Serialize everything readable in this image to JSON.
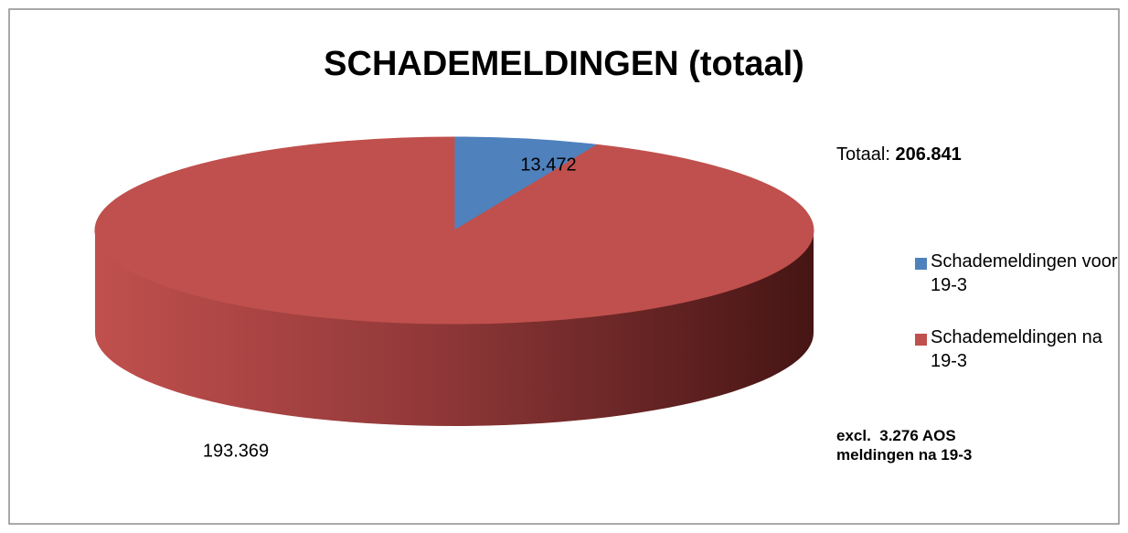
{
  "chart_data": {
    "type": "pie3d",
    "title": "SCHADEMELDINGEN (totaal)",
    "series": [
      {
        "name": "Schademeldingen voor 19-3",
        "color": "#4f81bd",
        "value": 13472,
        "value_label": "13.472"
      },
      {
        "name": "Schademeldingen na 19-3",
        "color": "#c0504d",
        "value": 193369,
        "value_label": "193.369"
      }
    ],
    "annotations": [
      "Totaal:",
      "206.841",
      "excl.  3.276 AOS meldingen na 19-3"
    ],
    "legend": "right"
  }
}
